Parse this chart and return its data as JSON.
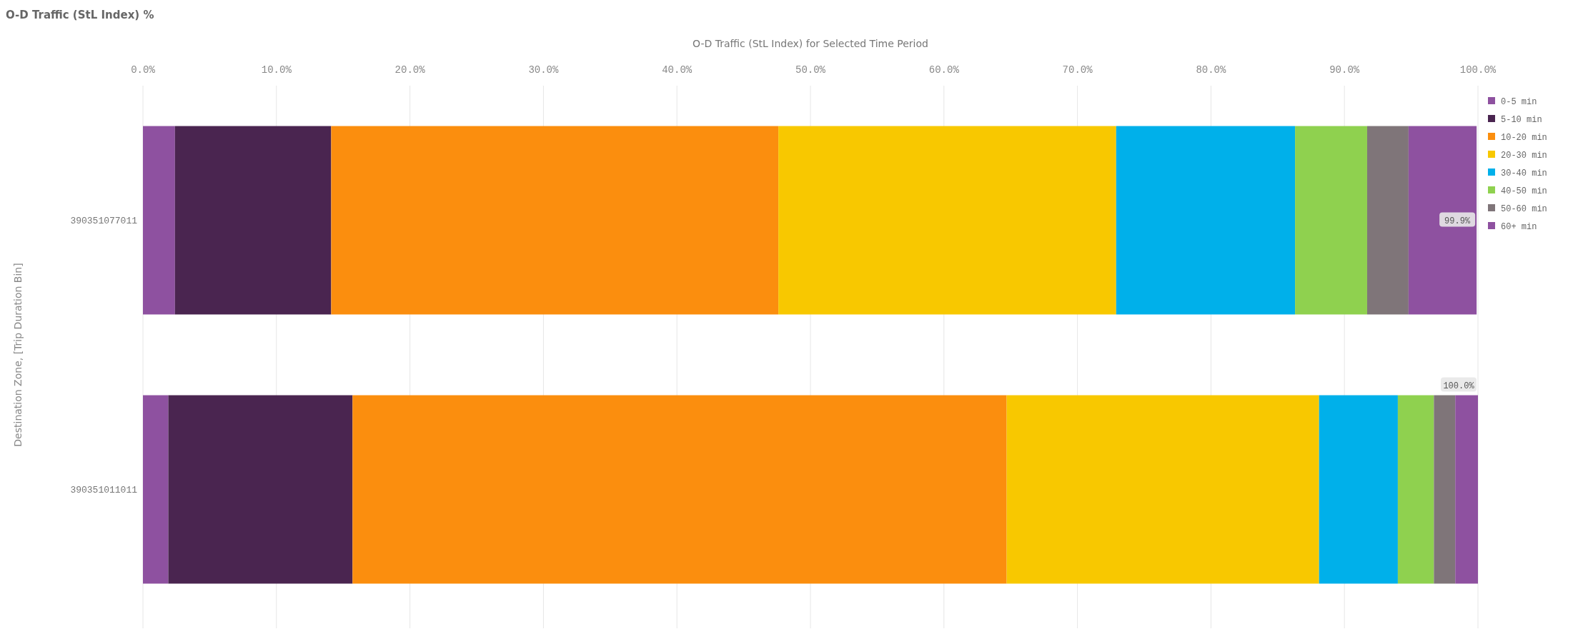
{
  "chart_data": {
    "type": "bar",
    "orientation": "horizontal",
    "stacked": true,
    "title": "O-D Traffic (StL Index) %",
    "xlabel": "O-D Traffic (StL Index) for Selected Time Period",
    "ylabel": "Destination Zone, [Trip Duration Bin]",
    "categories": [
      "390351077011",
      "390351011011"
    ],
    "series": [
      {
        "name": "0-5 min",
        "color": "#8e51a0",
        "values": [
          2.4,
          1.9
        ]
      },
      {
        "name": "5-10 min",
        "color": "#4a2550",
        "values": [
          11.7,
          13.8
        ]
      },
      {
        "name": "10-20 min",
        "color": "#fb8e0e",
        "values": [
          33.5,
          49.0
        ]
      },
      {
        "name": "20-30 min",
        "color": "#f8c800",
        "values": [
          25.3,
          23.4
        ]
      },
      {
        "name": "30-40 min",
        "color": "#00b0ea",
        "values": [
          13.4,
          5.9
        ]
      },
      {
        "name": "40-50 min",
        "color": "#8fd14f",
        "values": [
          5.4,
          2.7
        ]
      },
      {
        "name": "50-60 min",
        "color": "#7f7579",
        "values": [
          3.1,
          1.6
        ]
      },
      {
        "name": "60+ min",
        "color": "#8e51a0",
        "values": [
          5.1,
          1.7
        ]
      }
    ],
    "totals": [
      "99.9%",
      "100.0%"
    ],
    "xlim": [
      0,
      100
    ],
    "xticks": [
      {
        "value": 0,
        "label": "0.0%"
      },
      {
        "value": 10,
        "label": "10.0%"
      },
      {
        "value": 20,
        "label": "20.0%"
      },
      {
        "value": 30,
        "label": "30.0%"
      },
      {
        "value": 40,
        "label": "40.0%"
      },
      {
        "value": 50,
        "label": "50.0%"
      },
      {
        "value": 60,
        "label": "60.0%"
      },
      {
        "value": 70,
        "label": "70.0%"
      },
      {
        "value": 80,
        "label": "80.0%"
      },
      {
        "value": 90,
        "label": "90.0%"
      },
      {
        "value": 100,
        "label": "100.0%"
      }
    ],
    "grid": "x",
    "legend": "top right"
  }
}
